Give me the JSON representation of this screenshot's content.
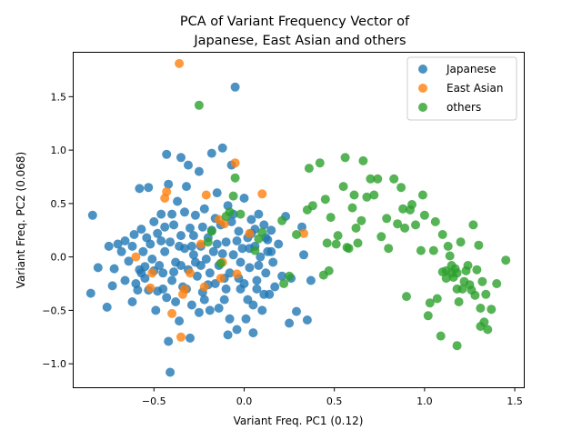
{
  "chart_data": {
    "type": "scatter",
    "title_line1": "PCA of Variant Frequency Vector of",
    "title_line2": "Japanese, East Asian and others",
    "xlabel": "Variant Freq. PC1 (0.12)",
    "ylabel": "Variant Freq. PC2 (0.068)",
    "xlim": [
      -0.95,
      1.55
    ],
    "ylim": [
      -1.22,
      1.92
    ],
    "xticks": [
      -0.5,
      0.0,
      0.5,
      1.0,
      1.5
    ],
    "xtick_labels": [
      "−0.5",
      "0.0",
      "0.5",
      "1.0",
      "1.5"
    ],
    "yticks": [
      -1.0,
      -0.5,
      0.0,
      0.5,
      1.0,
      1.5
    ],
    "ytick_labels": [
      "−1.0",
      "−0.5",
      "0.0",
      "0.5",
      "1.0",
      "1.5"
    ],
    "grid": false,
    "legend_placement": "top-right",
    "series": [
      {
        "name": "Japanese",
        "color": "#1f77b4",
        "points": [
          [
            -0.84,
            0.39
          ],
          [
            -0.81,
            -0.1
          ],
          [
            -0.85,
            -0.34
          ],
          [
            -0.76,
            -0.47
          ],
          [
            -0.73,
            -0.27
          ],
          [
            -0.75,
            0.1
          ],
          [
            -0.72,
            -0.11
          ],
          [
            -0.7,
            0.12
          ],
          [
            -0.68,
            0.05
          ],
          [
            -0.66,
            0.15
          ],
          [
            -0.64,
            -0.04
          ],
          [
            -0.62,
            0.1
          ],
          [
            -0.61,
            0.21
          ],
          [
            -0.6,
            -0.25
          ],
          [
            -0.58,
            -0.12
          ],
          [
            -0.57,
            0.26
          ],
          [
            -0.56,
            0.05
          ],
          [
            -0.55,
            -0.2
          ],
          [
            -0.54,
            0.18
          ],
          [
            -0.53,
            -0.31
          ],
          [
            -0.52,
            0.12
          ],
          [
            -0.51,
            -0.02
          ],
          [
            -0.5,
            0.33
          ],
          [
            -0.49,
            -0.5
          ],
          [
            -0.48,
            0.22
          ],
          [
            -0.47,
            -0.08
          ],
          [
            -0.46,
            0.4
          ],
          [
            -0.45,
            -0.15
          ],
          [
            -0.44,
            0.05
          ],
          [
            -0.43,
            -0.38
          ],
          [
            -0.42,
            0.68
          ],
          [
            -0.41,
            0.14
          ],
          [
            -0.4,
            -0.22
          ],
          [
            -0.39,
            0.3
          ],
          [
            -0.38,
            -0.05
          ],
          [
            -0.37,
            0.52
          ],
          [
            -0.36,
            -0.6
          ],
          [
            -0.35,
            0.2
          ],
          [
            -0.34,
            -0.28
          ],
          [
            -0.33,
            0.08
          ],
          [
            -0.32,
            0.66
          ],
          [
            -0.31,
            -0.12
          ],
          [
            -0.3,
            0.27
          ],
          [
            -0.29,
            -0.45
          ],
          [
            -0.28,
            0.02
          ],
          [
            -0.27,
            0.39
          ],
          [
            -0.26,
            -0.18
          ],
          [
            -0.25,
            0.8
          ],
          [
            -0.24,
            0.1
          ],
          [
            -0.23,
            -0.33
          ],
          [
            -0.22,
            0.45
          ],
          [
            -0.21,
            -0.02
          ],
          [
            -0.2,
            0.18
          ],
          [
            -0.19,
            -0.5
          ],
          [
            -0.18,
            0.97
          ],
          [
            -0.17,
            0.05
          ],
          [
            -0.16,
            -0.25
          ],
          [
            -0.15,
            0.6
          ],
          [
            -0.14,
            -0.08
          ],
          [
            -0.13,
            0.3
          ],
          [
            -0.12,
            1.02
          ],
          [
            -0.11,
            -0.4
          ],
          [
            -0.1,
            0.14
          ],
          [
            -0.09,
            0.48
          ],
          [
            -0.08,
            -0.15
          ],
          [
            -0.07,
            0.86
          ],
          [
            -0.06,
            0.02
          ],
          [
            -0.05,
            1.59
          ],
          [
            -0.04,
            -0.68
          ],
          [
            -0.03,
            0.24
          ],
          [
            -0.02,
            -0.3
          ],
          [
            -0.01,
            0.08
          ],
          [
            0.0,
            0.55
          ],
          [
            0.01,
            -0.58
          ],
          [
            0.02,
            0.18
          ],
          [
            0.03,
            -0.1
          ],
          [
            0.04,
            0.35
          ],
          [
            0.05,
            -0.45
          ],
          [
            0.06,
            0.1
          ],
          [
            0.07,
            -0.22
          ],
          [
            0.08,
            0.4
          ],
          [
            0.09,
            0.0
          ],
          [
            0.1,
            -0.5
          ],
          [
            0.11,
            0.3
          ],
          [
            0.12,
            -0.15
          ],
          [
            0.13,
            0.16
          ],
          [
            0.14,
            -0.35
          ],
          [
            0.15,
            0.05
          ],
          [
            0.16,
            -0.05
          ],
          [
            0.17,
            -0.28
          ],
          [
            0.19,
            0.12
          ],
          [
            0.21,
            -0.18
          ],
          [
            0.23,
            0.38
          ],
          [
            0.25,
            -0.62
          ],
          [
            0.26,
            -0.2
          ],
          [
            0.29,
            -0.51
          ],
          [
            0.32,
            0.28
          ],
          [
            0.33,
            0.02
          ],
          [
            0.35,
            -0.59
          ],
          [
            0.37,
            -0.22
          ],
          [
            -0.58,
            0.64
          ],
          [
            -0.53,
            0.65
          ],
          [
            -0.43,
            0.96
          ],
          [
            -0.35,
            0.93
          ],
          [
            -0.31,
            0.86
          ],
          [
            -0.42,
            -0.79
          ],
          [
            -0.41,
            -1.08
          ],
          [
            -0.3,
            -0.76
          ],
          [
            -0.25,
            -0.52
          ],
          [
            -0.09,
            -0.73
          ],
          [
            0.05,
            -0.71
          ],
          [
            -0.62,
            -0.42
          ],
          [
            -0.55,
            -0.09
          ],
          [
            -0.48,
            -0.32
          ],
          [
            -0.44,
            0.28
          ],
          [
            -0.38,
            -0.42
          ],
          [
            -0.33,
            0.42
          ],
          [
            -0.27,
            -0.05
          ],
          [
            -0.22,
            -0.4
          ],
          [
            -0.18,
            0.25
          ],
          [
            -0.14,
            -0.48
          ],
          [
            -0.1,
            -0.3
          ],
          [
            -0.06,
            0.4
          ],
          [
            -0.03,
            -0.2
          ],
          [
            0.02,
            -0.4
          ],
          [
            0.06,
            0.26
          ],
          [
            0.11,
            -0.35
          ],
          [
            0.15,
            0.25
          ],
          [
            -0.66,
            -0.22
          ],
          [
            -0.59,
            -0.31
          ],
          [
            -0.5,
            -0.13
          ],
          [
            -0.46,
            0.15
          ],
          [
            -0.39,
            -0.14
          ],
          [
            -0.36,
            0.1
          ],
          [
            -0.32,
            -0.3
          ],
          [
            -0.28,
            0.2
          ],
          [
            -0.24,
            -0.08
          ],
          [
            -0.2,
            -0.26
          ],
          [
            -0.16,
            0.36
          ],
          [
            -0.12,
            0.03
          ],
          [
            -0.08,
            -0.58
          ],
          [
            -0.04,
            0.15
          ],
          [
            0.0,
            -0.25
          ],
          [
            0.04,
            0.22
          ],
          [
            0.08,
            -0.08
          ],
          [
            0.12,
            0.18
          ],
          [
            -0.57,
            -0.15
          ],
          [
            -0.45,
            -0.3
          ],
          [
            -0.4,
            0.4
          ],
          [
            -0.35,
            -0.08
          ],
          [
            -0.29,
            0.1
          ],
          [
            -0.23,
            0.28
          ],
          [
            -0.19,
            -0.15
          ],
          [
            -0.15,
            0.12
          ],
          [
            -0.11,
            -0.2
          ],
          [
            -0.07,
            0.33
          ],
          [
            -0.02,
            -0.05
          ],
          [
            0.03,
            0.08
          ],
          [
            0.07,
            -0.3
          ],
          [
            0.13,
            0.05
          ]
        ]
      },
      {
        "name": "East Asian",
        "color": "#ff7f0e",
        "points": [
          [
            -0.36,
            1.81
          ],
          [
            -0.05,
            0.88
          ],
          [
            0.1,
            0.59
          ],
          [
            -0.44,
            0.55
          ],
          [
            -0.43,
            0.61
          ],
          [
            -0.21,
            0.58
          ],
          [
            -0.24,
            0.12
          ],
          [
            -0.14,
            0.35
          ],
          [
            -0.11,
            0.31
          ],
          [
            -0.04,
            -0.16
          ],
          [
            0.03,
            0.22
          ],
          [
            -0.6,
            0.0
          ],
          [
            -0.52,
            -0.29
          ],
          [
            -0.51,
            -0.15
          ],
          [
            -0.4,
            -0.53
          ],
          [
            -0.35,
            -0.75
          ],
          [
            -0.34,
            -0.35
          ],
          [
            -0.3,
            -0.15
          ],
          [
            -0.22,
            -0.28
          ],
          [
            -0.13,
            -0.2
          ],
          [
            0.33,
            0.22
          ],
          [
            -0.33,
            -0.3
          ],
          [
            -0.12,
            -0.05
          ]
        ]
      },
      {
        "name": "others",
        "color": "#2ca02c",
        "points": [
          [
            -0.25,
            1.42
          ],
          [
            -0.08,
            0.42
          ],
          [
            -0.05,
            0.74
          ],
          [
            -0.06,
            0.57
          ],
          [
            -0.02,
            0.4
          ],
          [
            0.08,
            0.17
          ],
          [
            0.1,
            0.23
          ],
          [
            -0.18,
            0.24
          ],
          [
            -0.2,
            0.14
          ],
          [
            -0.13,
            -0.06
          ],
          [
            -0.1,
            0.38
          ],
          [
            0.06,
            0.06
          ],
          [
            0.21,
            0.34
          ],
          [
            0.25,
            -0.18
          ],
          [
            0.29,
            0.21
          ],
          [
            0.35,
            0.44
          ],
          [
            0.36,
            0.83
          ],
          [
            0.38,
            0.48
          ],
          [
            0.42,
            0.88
          ],
          [
            0.44,
            -0.17
          ],
          [
            0.45,
            0.54
          ],
          [
            0.46,
            0.13
          ],
          [
            0.47,
            -0.13
          ],
          [
            0.48,
            0.37
          ],
          [
            0.51,
            0.12
          ],
          [
            0.52,
            0.2
          ],
          [
            0.55,
            0.66
          ],
          [
            0.56,
            0.93
          ],
          [
            0.57,
            0.09
          ],
          [
            0.58,
            0.08
          ],
          [
            0.6,
            0.46
          ],
          [
            0.61,
            0.58
          ],
          [
            0.62,
            0.27
          ],
          [
            0.63,
            0.13
          ],
          [
            0.65,
            0.34
          ],
          [
            0.66,
            0.9
          ],
          [
            0.68,
            0.56
          ],
          [
            0.7,
            0.73
          ],
          [
            0.72,
            0.58
          ],
          [
            0.74,
            0.73
          ],
          [
            0.76,
            0.19
          ],
          [
            0.79,
            0.36
          ],
          [
            0.8,
            0.08
          ],
          [
            0.83,
            0.73
          ],
          [
            0.85,
            0.31
          ],
          [
            0.87,
            0.65
          ],
          [
            0.88,
            0.45
          ],
          [
            0.89,
            0.27
          ],
          [
            0.9,
            -0.37
          ],
          [
            0.92,
            0.44
          ],
          [
            0.93,
            0.49
          ],
          [
            0.95,
            0.3
          ],
          [
            0.98,
            0.06
          ],
          [
            0.99,
            0.58
          ],
          [
            1.0,
            0.39
          ],
          [
            1.02,
            -0.55
          ],
          [
            1.03,
            -0.43
          ],
          [
            1.05,
            0.06
          ],
          [
            1.06,
            0.33
          ],
          [
            1.07,
            -0.39
          ],
          [
            1.09,
            -0.74
          ],
          [
            1.1,
            0.21
          ],
          [
            1.12,
            -0.13
          ],
          [
            1.13,
            0.1
          ],
          [
            1.14,
            0.01
          ],
          [
            1.15,
            -0.15
          ],
          [
            1.16,
            -0.19
          ],
          [
            1.17,
            -0.11
          ],
          [
            1.18,
            -0.3
          ],
          [
            1.18,
            -0.83
          ],
          [
            1.19,
            -0.42
          ],
          [
            1.2,
            0.14
          ],
          [
            1.22,
            -0.23
          ],
          [
            1.23,
            -0.13
          ],
          [
            1.24,
            -0.08
          ],
          [
            1.25,
            -0.26
          ],
          [
            1.26,
            -0.31
          ],
          [
            1.27,
            0.3
          ],
          [
            1.28,
            -0.36
          ],
          [
            1.29,
            -0.12
          ],
          [
            1.3,
            0.11
          ],
          [
            1.31,
            -0.48
          ],
          [
            1.31,
            -0.65
          ],
          [
            1.32,
            -0.23
          ],
          [
            1.33,
            -0.61
          ],
          [
            1.34,
            -0.35
          ],
          [
            1.35,
            -0.68
          ],
          [
            1.37,
            -0.49
          ],
          [
            1.4,
            -0.25
          ],
          [
            1.45,
            -0.03
          ],
          [
            1.18,
            -0.15
          ],
          [
            1.15,
            -0.08
          ],
          [
            1.21,
            -0.3
          ],
          [
            1.1,
            -0.14
          ],
          [
            1.12,
            -0.2
          ],
          [
            0.22,
            -0.25
          ]
        ]
      }
    ]
  }
}
